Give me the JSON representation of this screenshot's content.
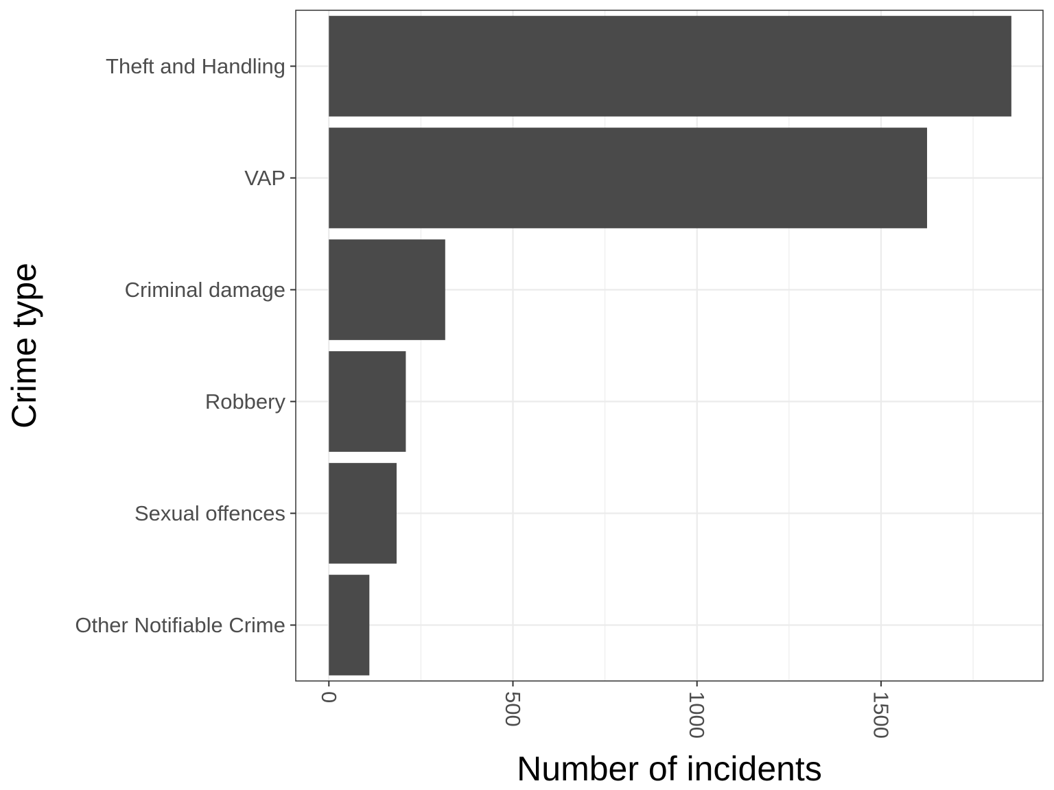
{
  "chart_data": {
    "type": "bar",
    "orientation": "horizontal",
    "xlabel": "Number of incidents",
    "ylabel": "Crime type",
    "categories": [
      "Theft and Handling",
      "VAP",
      "Criminal damage",
      "Robbery",
      "Sexual offences",
      "Other Notifiable Crime"
    ],
    "values": [
      1854,
      1625,
      316,
      209,
      184,
      110
    ],
    "xlim": [
      -90,
      1940
    ],
    "xticks": [
      0,
      500,
      1000,
      1500
    ],
    "xtick_labels": [
      "0",
      "500",
      "1000",
      "1500"
    ],
    "grid": true,
    "bar_color": "#4a4a4a",
    "grid_color": "#ebebeb",
    "panel_border_color": "#333333"
  }
}
